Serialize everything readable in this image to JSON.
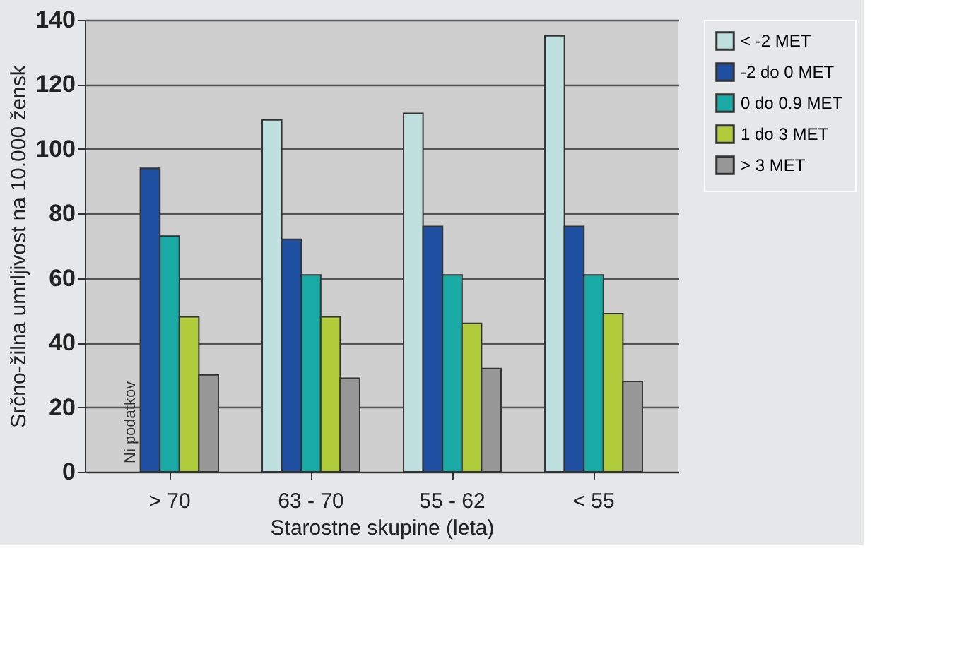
{
  "chart_data": {
    "type": "bar",
    "xlabel": "Starostne skupine (leta)",
    "ylabel": "Srčno-žilna umrljivost na 10.000 žensk",
    "categories": [
      "> 70",
      "63 - 70",
      "55 - 62",
      "< 55"
    ],
    "series": [
      {
        "name": "< -2 MET",
        "color": "#c0e0e0",
        "values": [
          null,
          109,
          111,
          135
        ]
      },
      {
        "name": "-2 do 0 MET",
        "color": "#1f4fa0",
        "values": [
          94,
          72,
          76,
          76
        ]
      },
      {
        "name": "0 do 0.9 MET",
        "color": "#1aaaa5",
        "values": [
          73,
          61,
          61,
          61
        ]
      },
      {
        "name": "1 do 3 MET",
        "color": "#b0cc3a",
        "values": [
          48,
          48,
          46,
          49
        ]
      },
      {
        "name": "> 3 MET",
        "color": "#989898",
        "values": [
          30,
          29,
          32,
          28
        ]
      }
    ],
    "annotations": [
      "Ni podatkov"
    ],
    "ylim": [
      0,
      140
    ],
    "yticks": [
      0,
      20,
      40,
      60,
      80,
      100,
      120,
      140
    ],
    "grid": "y",
    "legend": "right"
  }
}
